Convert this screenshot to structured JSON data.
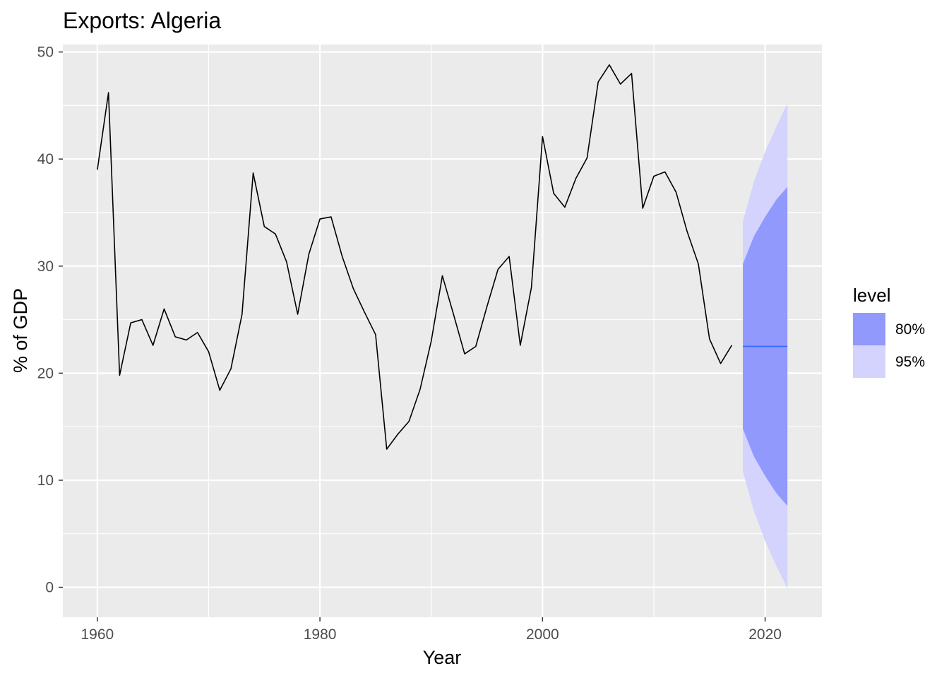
{
  "chart_data": {
    "type": "line",
    "title": "Exports: Algeria",
    "xlabel": "Year",
    "ylabel": "% of GDP",
    "xlim": [
      1956.9,
      2025.1
    ],
    "ylim": [
      -2.8,
      50.7
    ],
    "x_ticks": [
      1960,
      1980,
      2000,
      2020
    ],
    "y_ticks": [
      0,
      10,
      20,
      30,
      40,
      50
    ],
    "grid": true,
    "legend_position": "right",
    "series": [
      {
        "x": [
          1960,
          1961,
          1962,
          1963,
          1964,
          1965,
          1966,
          1967,
          1968,
          1969,
          1970,
          1971,
          1972,
          1973,
          1974,
          1975,
          1976,
          1977,
          1978,
          1979,
          1980,
          1981,
          1982,
          1983,
          1984,
          1985,
          1986,
          1987,
          1988,
          1989,
          1990,
          1991,
          1992,
          1993,
          1994,
          1995,
          1996,
          1997,
          1998,
          1999,
          2000,
          2001,
          2002,
          2003,
          2004,
          2005,
          2006,
          2007,
          2008,
          2009,
          2010,
          2011,
          2012,
          2013,
          2014,
          2015,
          2016,
          2017
        ],
        "values": [
          39.0,
          46.2,
          19.8,
          24.7,
          25.0,
          22.6,
          26.0,
          23.4,
          23.1,
          23.8,
          22.0,
          18.4,
          20.4,
          25.5,
          38.7,
          33.7,
          33.0,
          30.4,
          25.5,
          31.1,
          34.4,
          34.6,
          30.9,
          27.9,
          25.7,
          23.6,
          12.9,
          14.3,
          15.5,
          18.5,
          23.0,
          29.1,
          25.5,
          21.8,
          22.5,
          26.2,
          29.7,
          30.9,
          22.6,
          28.0,
          42.1,
          36.8,
          35.5,
          38.2,
          40.1,
          47.2,
          48.8,
          47.0,
          48.0,
          35.4,
          38.4,
          38.8,
          36.9,
          33.2,
          30.2,
          23.2,
          20.9,
          22.6
        ],
        "color": "#000000"
      }
    ],
    "forecast": {
      "x": [
        2018,
        2019,
        2020,
        2021,
        2022
      ],
      "mean": [
        22.5,
        22.5,
        22.5,
        22.5,
        22.5
      ],
      "lo80": [
        14.8,
        12.2,
        10.4,
        8.8,
        7.6
      ],
      "hi80": [
        30.2,
        32.8,
        34.6,
        36.2,
        37.4
      ],
      "lo95": [
        10.8,
        7.1,
        4.3,
        2.0,
        -0.1
      ],
      "hi95": [
        34.2,
        37.9,
        40.7,
        43.0,
        45.2
      ],
      "mean_color": "#3366ff"
    },
    "legend": {
      "title": "level",
      "items": [
        {
          "label": "80%",
          "color": "#9199fd"
        },
        {
          "label": "95%",
          "color": "#d3d3fd"
        }
      ]
    },
    "colors": {
      "panel": "#ebebeb",
      "grid": "#ffffff",
      "band80": "#9199fd",
      "band95": "#d3d3fd"
    }
  }
}
